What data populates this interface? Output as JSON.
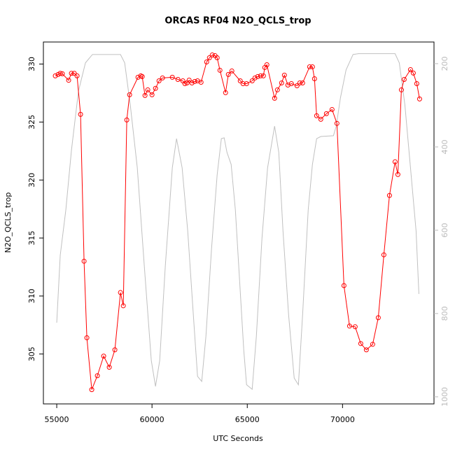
{
  "chart_data": {
    "type": "line",
    "title": "ORCAS RF04 N2O_QCLS_trop",
    "x_label": "UTC Seconds",
    "y_label": "N2O_QCLS_trop",
    "xlim": [
      54300,
      74800
    ],
    "xticks": [
      55000,
      60000,
      65000,
      70000
    ],
    "ylim": [
      300.7,
      331.9
    ],
    "yticks": [
      305,
      310,
      315,
      320,
      325,
      330
    ],
    "y2lim": [
      148,
      1017
    ],
    "y2ticks": [
      200,
      400,
      600,
      800,
      1000
    ],
    "y2_reversed": true,
    "series": [
      {
        "color": "#c0c0c0",
        "axis": "y2",
        "marker": false,
        "x": [
          55000,
          55184,
          55478,
          55772,
          56140,
          56507,
          56875,
          58345,
          58566,
          58860,
          59228,
          59596,
          59963,
          60184,
          60404,
          60698,
          61066,
          61287,
          61581,
          61875,
          62169,
          62390,
          62610,
          62831,
          63125,
          63419,
          63640,
          63787,
          63934,
          64154,
          64375,
          64596,
          64816,
          64963,
          65257,
          65478,
          65772,
          66066,
          66434,
          66654,
          66875,
          67169,
          67463,
          67684,
          67904,
          68198,
          68419,
          68640,
          68860,
          69522,
          69669,
          69890,
          70184,
          70551,
          70846,
          72757,
          72978,
          73272,
          73566,
          73860,
          74007
        ],
        "values": [
          822,
          660,
          551,
          408,
          266,
          198,
          178,
          178,
          198,
          299,
          450,
          686,
          913,
          975,
          913,
          686,
          450,
          380,
          450,
          602,
          803,
          951,
          963,
          854,
          644,
          467,
          380,
          378,
          413,
          442,
          551,
          720,
          888,
          971,
          982,
          854,
          619,
          450,
          350,
          413,
          602,
          803,
          955,
          971,
          803,
          551,
          442,
          380,
          375,
          373,
          350,
          282,
          215,
          178,
          176,
          176,
          198,
          299,
          450,
          602,
          753
        ]
      },
      {
        "color": "#ff0000",
        "axis": "y",
        "marker": true,
        "x": [
          54926,
          55074,
          55184,
          55294,
          55625,
          55772,
          55919,
          56066,
          56250,
          56434,
          56581,
          56838,
          57132,
          57463,
          57757,
          58051,
          58345,
          58493,
          58676,
          58824,
          59265,
          59412,
          59485,
          59632,
          59779,
          60000,
          60184,
          60368,
          60551,
          61066,
          61360,
          61618,
          61728,
          61838,
          61949,
          62096,
          62243,
          62390,
          62574,
          62868,
          63015,
          63162,
          63309,
          63419,
          63566,
          63860,
          64007,
          64191,
          64632,
          64779,
          64963,
          65257,
          65404,
          65551,
          65699,
          65846,
          65919,
          66029,
          66434,
          66581,
          66801,
          66949,
          67132,
          67316,
          67610,
          67757,
          67904,
          68272,
          68419,
          68529,
          68640,
          68860,
          69154,
          69449,
          69706,
          70074,
          70368,
          70662,
          70956,
          71250,
          71581,
          71875,
          72169,
          72463,
          72757,
          72904,
          73088,
          73235,
          73566,
          73713,
          73897,
          74044
        ],
        "values": [
          328.98,
          329.1,
          329.2,
          329.16,
          328.6,
          329.2,
          329.2,
          328.98,
          325.66,
          313.0,
          306.4,
          301.93,
          303.13,
          304.82,
          303.86,
          305.36,
          310.3,
          309.16,
          325.18,
          327.35,
          328.86,
          328.98,
          328.92,
          327.29,
          327.77,
          327.35,
          327.9,
          328.55,
          328.8,
          328.86,
          328.67,
          328.55,
          328.31,
          328.37,
          328.61,
          328.37,
          328.5,
          328.55,
          328.43,
          330.18,
          330.54,
          330.78,
          330.72,
          330.54,
          329.46,
          327.53,
          329.1,
          329.4,
          328.55,
          328.31,
          328.31,
          328.55,
          328.8,
          328.92,
          328.98,
          328.98,
          329.7,
          329.94,
          327.05,
          327.77,
          328.37,
          329.04,
          328.19,
          328.31,
          328.13,
          328.37,
          328.37,
          329.76,
          329.76,
          328.73,
          325.54,
          325.24,
          325.72,
          326.08,
          324.88,
          310.9,
          307.41,
          307.35,
          305.9,
          305.36,
          305.84,
          308.13,
          313.55,
          318.67,
          321.57,
          320.48,
          327.77,
          328.67,
          329.52,
          329.22,
          328.31,
          326.99
        ]
      }
    ]
  }
}
